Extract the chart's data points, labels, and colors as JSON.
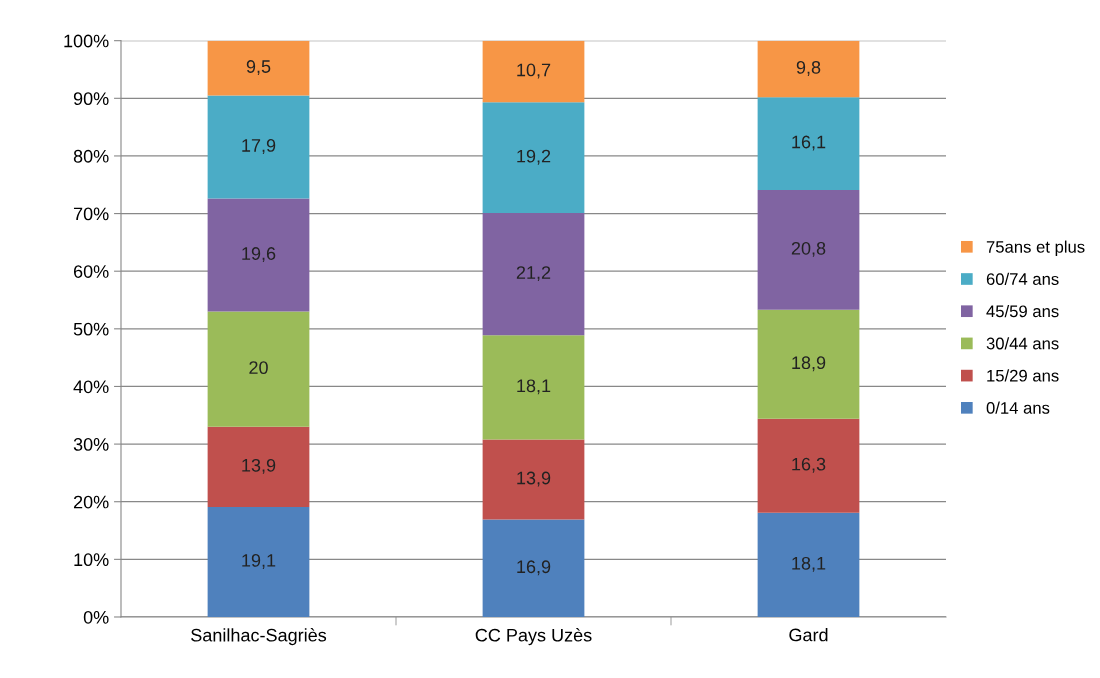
{
  "chart_data": {
    "type": "bar",
    "stacked": true,
    "categories": [
      "Sanilhac-Sagriès",
      "CC Pays Uzès",
      "Gard"
    ],
    "series": [
      {
        "name": "0/14 ans",
        "color": "#4f81bd",
        "values": [
          19.1,
          16.9,
          18.1
        ],
        "value_labels": [
          "19,1",
          "16,9",
          "18,1"
        ]
      },
      {
        "name": "15/29 ans",
        "color": "#c0504d",
        "values": [
          13.9,
          13.9,
          16.3
        ],
        "value_labels": [
          "13,9",
          "13,9",
          "16,3"
        ]
      },
      {
        "name": "30/44 ans",
        "color": "#9bbb59",
        "values": [
          20,
          18.1,
          18.9
        ],
        "value_labels": [
          "20",
          "18,1",
          "18,9"
        ]
      },
      {
        "name": "45/59 ans",
        "color": "#8064a2",
        "values": [
          19.6,
          21.2,
          20.8
        ],
        "value_labels": [
          "19,6",
          "21,2",
          "20,8"
        ]
      },
      {
        "name": "60/74 ans",
        "color": "#4bacc6",
        "values": [
          17.9,
          19.2,
          16.1
        ],
        "value_labels": [
          "17,9",
          "19,2",
          "16,1"
        ]
      },
      {
        "name": "75ans et plus",
        "color": "#f79646",
        "values": [
          9.5,
          10.7,
          9.8
        ],
        "value_labels": [
          "9,5",
          "10,7",
          "9,8"
        ]
      }
    ],
    "ylim": [
      0,
      100
    ],
    "yticks": [
      {
        "value": 0,
        "label": "0%"
      },
      {
        "value": 10,
        "label": "10%"
      },
      {
        "value": 20,
        "label": "20%"
      },
      {
        "value": 30,
        "label": "30%"
      },
      {
        "value": 40,
        "label": "40%"
      },
      {
        "value": 50,
        "label": "50%"
      },
      {
        "value": 60,
        "label": "60%"
      },
      {
        "value": 70,
        "label": "70%"
      },
      {
        "value": 80,
        "label": "80%"
      },
      {
        "value": 90,
        "label": "90%"
      },
      {
        "value": 100,
        "label": "100%"
      }
    ],
    "grid": "y",
    "legend": "right"
  }
}
